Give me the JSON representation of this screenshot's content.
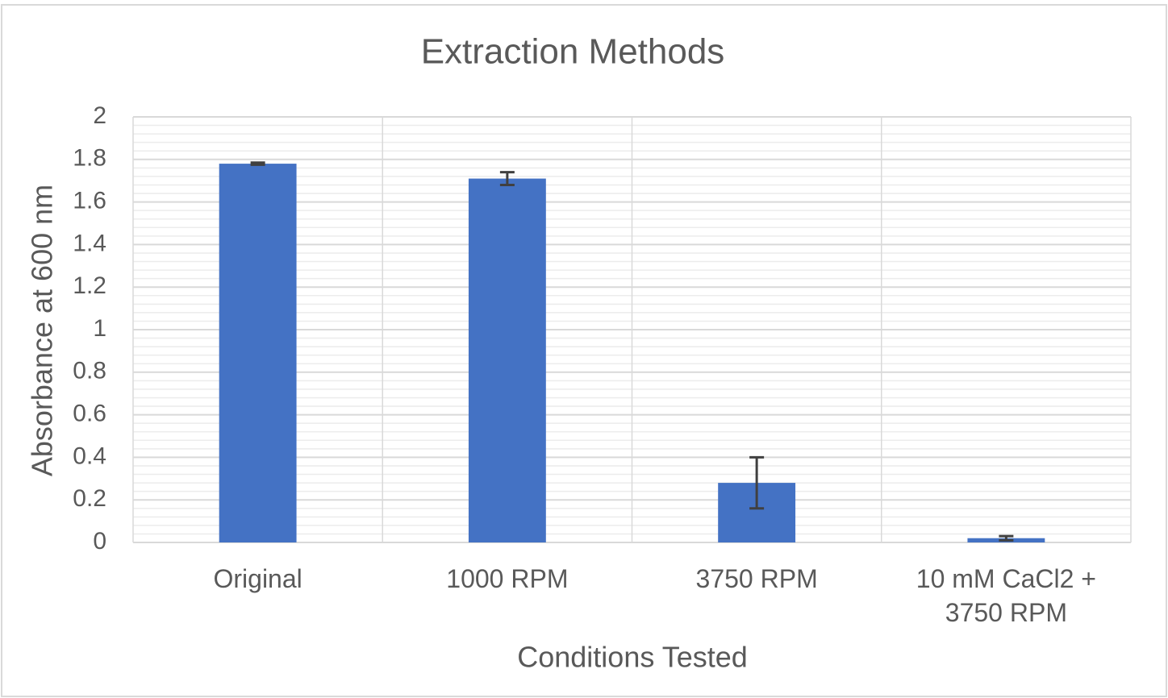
{
  "chart_data": {
    "type": "bar",
    "title": "Extraction Methods",
    "x_label": "Conditions Tested",
    "y_label": "Absorbance at 600 nm",
    "categories": [
      "Original",
      "1000 RPM",
      "3750 RPM",
      "10 mM CaCl2 + 3750 RPM"
    ],
    "series": [
      {
        "color": "#4472c4",
        "values": [
          1.78,
          1.71,
          0.28,
          0.02
        ],
        "errors": [
          0.005,
          0.03,
          0.12,
          0.01
        ]
      }
    ],
    "ylim": [
      0,
      2
    ],
    "yticks": [
      0,
      0.2,
      0.4,
      0.6,
      0.8,
      1,
      1.2,
      1.4,
      1.6,
      1.8,
      2
    ],
    "grid": true,
    "minor_grid": true
  }
}
